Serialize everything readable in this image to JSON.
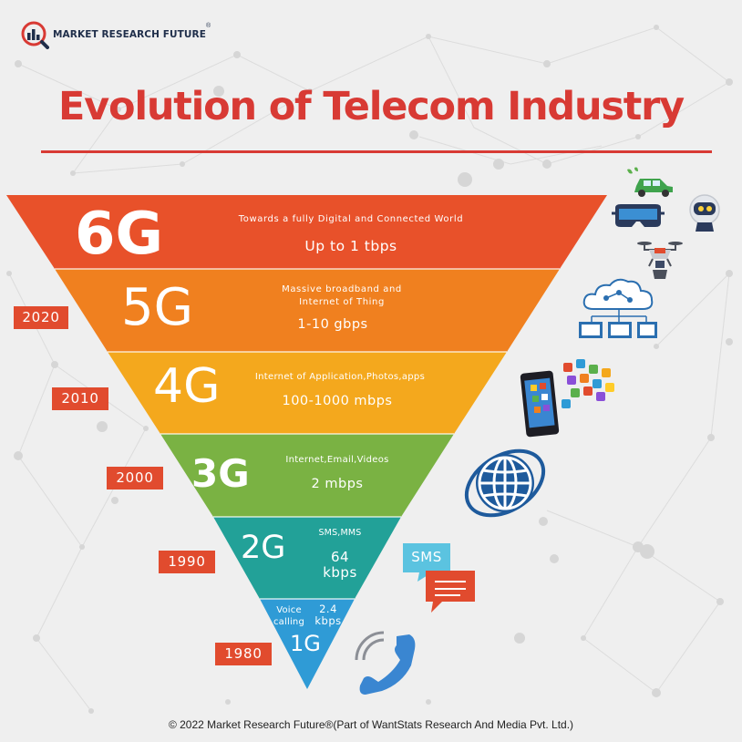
{
  "brand": {
    "name": "MARKET RESEARCH FUTURE",
    "registered_mark": "®"
  },
  "title": "Evolution of Telecom Industry",
  "colors": {
    "title": "#d83a34",
    "year_badge": "#e14b2e",
    "background": "#efefef"
  },
  "generations": [
    {
      "gen": "6G",
      "desc": "Towards a fully Digital and Connected World",
      "speed": "Up to 1 tbps",
      "color": "#e8512a"
    },
    {
      "gen": "5G",
      "desc_lines": [
        "Massive broadband and",
        "Internet of Thing"
      ],
      "speed": "1-10 gbps",
      "color": "#f0801f"
    },
    {
      "gen": "4G",
      "desc": "Internet of Application,Photos,apps",
      "speed": "100-1000 mbps",
      "color": "#f4a81d"
    },
    {
      "gen": "3G",
      "desc": "Internet,Email,Videos",
      "speed": "2 mbps",
      "color": "#7ab243"
    },
    {
      "gen": "2G",
      "desc": "SMS,MMS",
      "speed_lines": [
        "64",
        "kbps"
      ],
      "color": "#22a198"
    },
    {
      "gen": "1G",
      "desc_lines": [
        "Voice",
        "calling"
      ],
      "speed_lines": [
        "2.4",
        "kbps"
      ],
      "color": "#2f9bd6"
    }
  ],
  "years": [
    "2020",
    "2010",
    "2000",
    "1990",
    "1980"
  ],
  "icons": {
    "iot": [
      "electric-car-icon",
      "vr-headset-icon",
      "robot-head-icon",
      "drone-icon"
    ],
    "cloud": "cloud-network-icon",
    "apps": "smartphone-apps-icon",
    "internet": "globe-icon",
    "sms_bubble_text": "SMS",
    "voice": "phone-handset-icon"
  },
  "footer": "© 2022 Market Research Future®(Part of WantStats Research And Media Pvt. Ltd.)"
}
